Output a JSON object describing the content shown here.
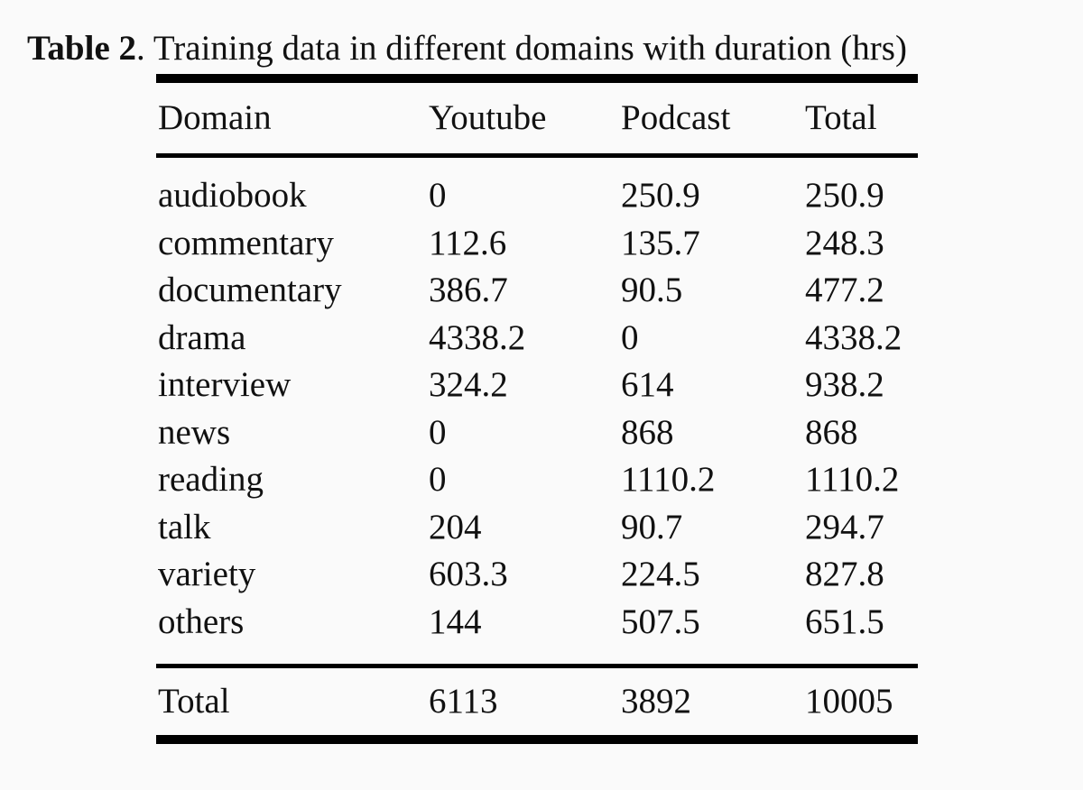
{
  "caption": {
    "label": "Table 2",
    "text": ". Training data in different domains with duration (hrs)"
  },
  "table": {
    "headers": [
      "Domain",
      "Youtube",
      "Podcast",
      "Total"
    ],
    "rows": [
      [
        "audiobook",
        "0",
        "250.9",
        "250.9"
      ],
      [
        "commentary",
        "112.6",
        "135.7",
        "248.3"
      ],
      [
        "documentary",
        "386.7",
        "90.5",
        "477.2"
      ],
      [
        "drama",
        "4338.2",
        "0",
        "4338.2"
      ],
      [
        "interview",
        "324.2",
        "614",
        "938.2"
      ],
      [
        "news",
        "0",
        "868",
        "868"
      ],
      [
        "reading",
        "0",
        "1110.2",
        "1110.2"
      ],
      [
        "talk",
        "204",
        "90.7",
        "294.7"
      ],
      [
        "variety",
        "603.3",
        "224.5",
        "827.8"
      ],
      [
        "others",
        "144",
        "507.5",
        "651.5"
      ]
    ],
    "total": [
      "Total",
      "6113",
      "3892",
      "10005"
    ]
  }
}
